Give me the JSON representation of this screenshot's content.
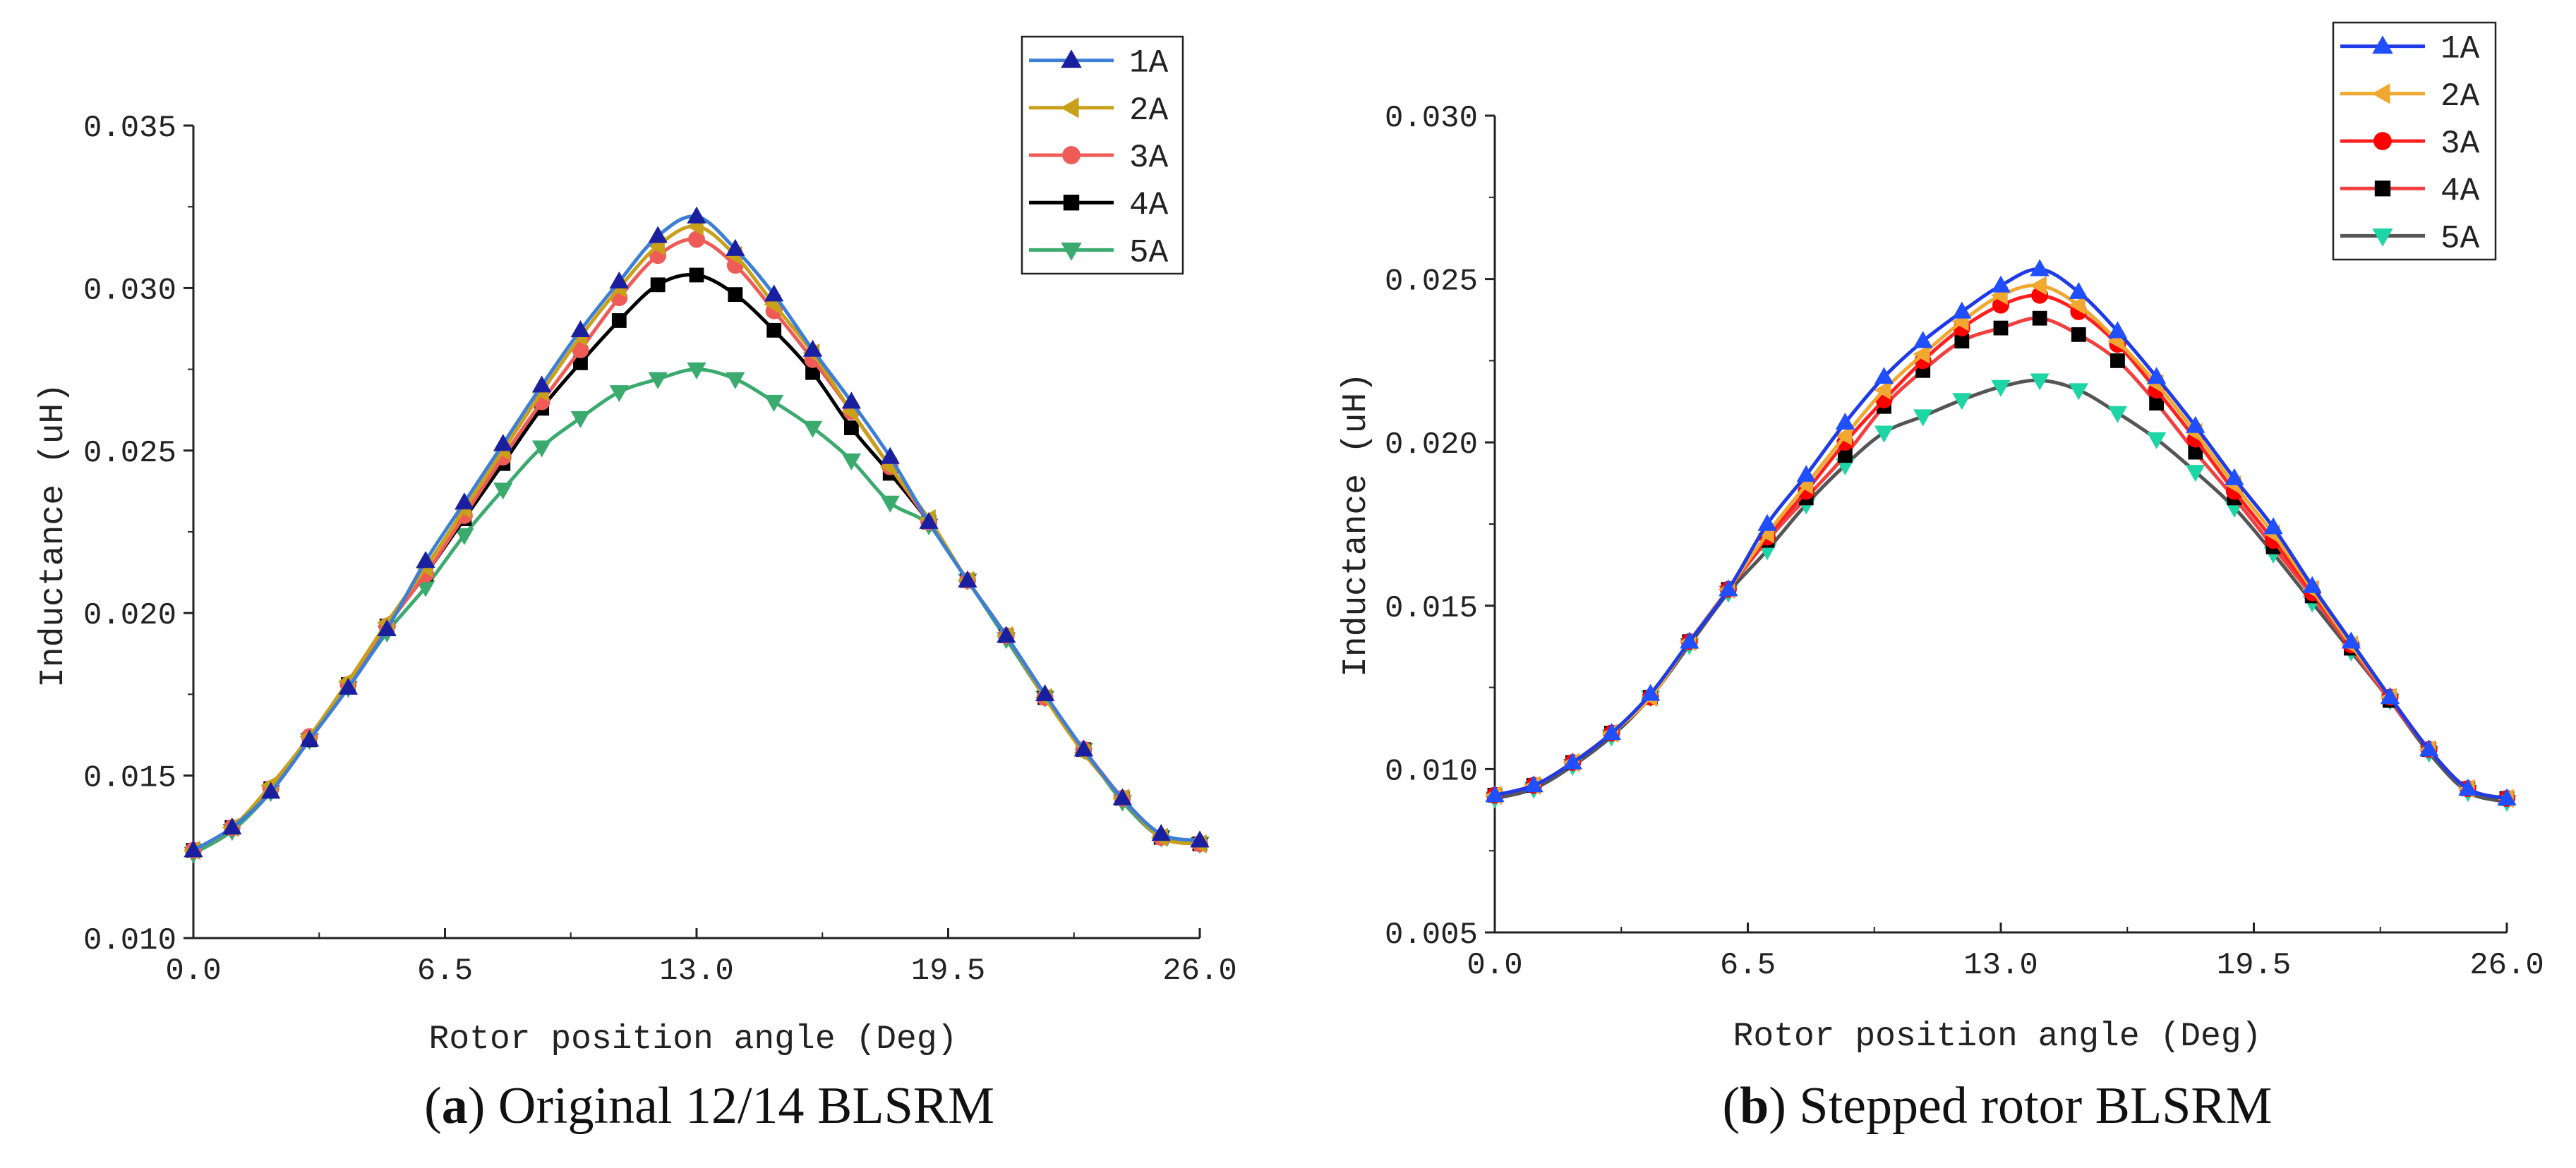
{
  "chart_data": [
    {
      "type": "line",
      "caption_letter": "a",
      "caption_text": "Original 12/14 BLSRM",
      "xlabel": "Rotor position angle (Deg)",
      "ylabel": "Inductance (uH)",
      "xlim": [
        0,
        26
      ],
      "ylim": [
        0.01,
        0.035
      ],
      "xticks": [
        0,
        6.5,
        13,
        19.5,
        26
      ],
      "xtick_labels": [
        "0.0",
        "6.5",
        "13.0",
        "19.5",
        "26.0"
      ],
      "yticks": [
        0.01,
        0.015,
        0.02,
        0.025,
        0.03,
        0.035
      ],
      "ytick_labels": [
        "0.010",
        "0.015",
        "0.020",
        "0.025",
        "0.030",
        "0.035"
      ],
      "legend_position": "top-right",
      "x": [
        0,
        1,
        2,
        3,
        4,
        5,
        6,
        7,
        8,
        9,
        10,
        11,
        12,
        13,
        14,
        15,
        16,
        17,
        18,
        19,
        20,
        21,
        22,
        23,
        24,
        25,
        26
      ],
      "series": [
        {
          "name": "1A",
          "color": "#3d7fd6",
          "marker_color": "#1a1fa0",
          "marker": "triangle-up",
          "values": [
            0.0127,
            0.0134,
            0.0145,
            0.0161,
            0.0177,
            0.0195,
            0.0216,
            0.0234,
            0.0252,
            0.027,
            0.0287,
            0.0302,
            0.0316,
            0.0322,
            0.0312,
            0.0298,
            0.0281,
            0.0265,
            0.0248,
            0.0228,
            0.021,
            0.0193,
            0.0175,
            0.0158,
            0.0143,
            0.0132,
            0.013
          ]
        },
        {
          "name": "2A",
          "color": "#c9a01a",
          "marker_color": "#c9a01a",
          "marker": "triangle-left",
          "values": [
            0.0127,
            0.0134,
            0.0147,
            0.0162,
            0.0179,
            0.0197,
            0.0214,
            0.0232,
            0.025,
            0.0268,
            0.0285,
            0.03,
            0.0313,
            0.0319,
            0.031,
            0.0295,
            0.028,
            0.0262,
            0.0245,
            0.0229,
            0.021,
            0.0193,
            0.0174,
            0.0157,
            0.0143,
            0.0131,
            0.0129
          ]
        },
        {
          "name": "3A",
          "color": "#ef5b57",
          "marker_color": "#ef5b57",
          "marker": "circle",
          "values": [
            0.0127,
            0.0134,
            0.0146,
            0.0162,
            0.0178,
            0.0196,
            0.0212,
            0.023,
            0.0248,
            0.0265,
            0.0281,
            0.0297,
            0.031,
            0.0315,
            0.0307,
            0.0293,
            0.0278,
            0.0262,
            0.0245,
            0.0228,
            0.021,
            0.0193,
            0.0174,
            0.0158,
            0.0143,
            0.0131,
            0.0129
          ]
        },
        {
          "name": "4A",
          "color": "#000000",
          "marker_color": "#000000",
          "marker": "square",
          "values": [
            0.0127,
            0.0134,
            0.0146,
            0.0161,
            0.0178,
            0.0196,
            0.0212,
            0.0229,
            0.0246,
            0.0263,
            0.0277,
            0.029,
            0.0301,
            0.0304,
            0.0298,
            0.0287,
            0.0274,
            0.0257,
            0.0243,
            0.0228,
            0.021,
            0.0193,
            0.0174,
            0.0158,
            0.0143,
            0.0131,
            0.0129
          ]
        },
        {
          "name": "5A",
          "color": "#3aaa6e",
          "marker_color": "#3aaa6e",
          "marker": "triangle-down",
          "values": [
            0.0126,
            0.0133,
            0.0145,
            0.0161,
            0.0177,
            0.0194,
            0.0208,
            0.0224,
            0.0238,
            0.0251,
            0.026,
            0.0268,
            0.0272,
            0.0275,
            0.0272,
            0.0265,
            0.0257,
            0.0247,
            0.0234,
            0.0227,
            0.021,
            0.0192,
            0.0174,
            0.0158,
            0.0142,
            0.0131,
            0.0129
          ]
        }
      ]
    },
    {
      "type": "line",
      "caption_letter": "b",
      "caption_text": "Stepped rotor BLSRM",
      "xlabel": "Rotor position angle (Deg)",
      "ylabel": "Inductance (uH)",
      "xlim": [
        0,
        26
      ],
      "ylim": [
        0.005,
        0.03
      ],
      "xticks": [
        0,
        6.5,
        13,
        19.5,
        26
      ],
      "xtick_labels": [
        "0.0",
        "6.5",
        "13.0",
        "19.5",
        "26.0"
      ],
      "yticks": [
        0.005,
        0.01,
        0.015,
        0.02,
        0.025,
        0.03
      ],
      "ytick_labels": [
        "0.005",
        "0.010",
        "0.015",
        "0.020",
        "0.025",
        "0.030"
      ],
      "legend_position": "top-right",
      "x": [
        0,
        1,
        2,
        3,
        4,
        5,
        6,
        7,
        8,
        9,
        10,
        11,
        12,
        13,
        14,
        15,
        16,
        17,
        18,
        19,
        20,
        21,
        22,
        23,
        24,
        25,
        26
      ],
      "series": [
        {
          "name": "1A",
          "color": "#1f3be6",
          "marker_color": "#1f4fff",
          "marker": "triangle-up",
          "values": [
            0.0092,
            0.0095,
            0.0102,
            0.0111,
            0.0123,
            0.0139,
            0.0155,
            0.0175,
            0.019,
            0.0206,
            0.022,
            0.0231,
            0.024,
            0.0248,
            0.0253,
            0.0246,
            0.0234,
            0.022,
            0.0205,
            0.0189,
            0.0174,
            0.0156,
            0.0139,
            0.0122,
            0.0106,
            0.0094,
            0.0091
          ]
        },
        {
          "name": "2A",
          "color": "#f0a830",
          "marker_color": "#f0a830",
          "marker": "triangle-left",
          "values": [
            0.0092,
            0.0095,
            0.0102,
            0.0111,
            0.0122,
            0.0139,
            0.0155,
            0.0172,
            0.0187,
            0.0202,
            0.0216,
            0.0227,
            0.0237,
            0.0245,
            0.0248,
            0.0242,
            0.0231,
            0.0218,
            0.0203,
            0.0187,
            0.0172,
            0.0155,
            0.0138,
            0.0122,
            0.0106,
            0.0094,
            0.0091
          ]
        },
        {
          "name": "3A",
          "color": "#ff2020",
          "marker_color": "#ff0000",
          "marker": "circle",
          "values": [
            0.0092,
            0.0095,
            0.0102,
            0.0111,
            0.0122,
            0.0139,
            0.0155,
            0.0171,
            0.0185,
            0.02,
            0.0213,
            0.0225,
            0.0235,
            0.0242,
            0.0245,
            0.024,
            0.023,
            0.0216,
            0.0201,
            0.0185,
            0.017,
            0.0154,
            0.0138,
            0.0122,
            0.0106,
            0.0094,
            0.0091
          ]
        },
        {
          "name": "4A",
          "color": "#f04040",
          "marker_color": "#000000",
          "marker": "square",
          "values": [
            0.0092,
            0.0095,
            0.0102,
            0.0111,
            0.0122,
            0.0139,
            0.0155,
            0.017,
            0.0183,
            0.0196,
            0.0211,
            0.0222,
            0.0231,
            0.0235,
            0.0238,
            0.0233,
            0.0225,
            0.0212,
            0.0197,
            0.0183,
            0.0168,
            0.0153,
            0.0137,
            0.0121,
            0.0106,
            0.0094,
            0.0091
          ]
        },
        {
          "name": "5A",
          "color": "#555555",
          "marker_color": "#1ed5a5",
          "marker": "triangle-down",
          "values": [
            0.0091,
            0.0094,
            0.0101,
            0.011,
            0.0122,
            0.0138,
            0.0154,
            0.0167,
            0.0181,
            0.0193,
            0.0203,
            0.0208,
            0.0213,
            0.0217,
            0.0219,
            0.0216,
            0.0209,
            0.0201,
            0.0191,
            0.018,
            0.0166,
            0.0151,
            0.0136,
            0.0121,
            0.0105,
            0.0093,
            0.009
          ]
        }
      ]
    }
  ]
}
